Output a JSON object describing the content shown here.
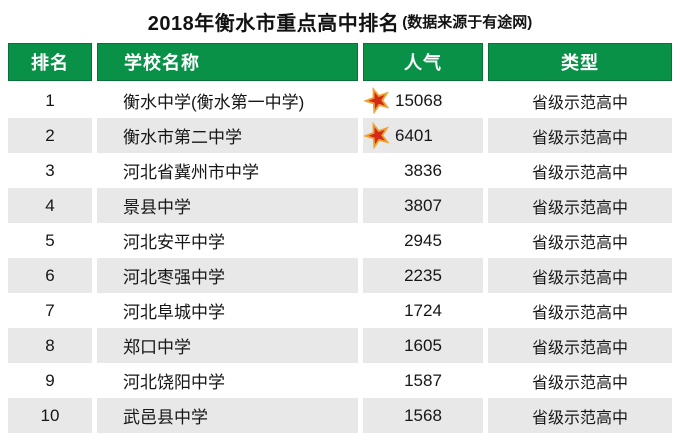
{
  "title": {
    "main": "2018年衡水市重点高中排名",
    "source_note": "(数据来源于有途网)"
  },
  "table": {
    "columns": [
      {
        "label": "排名"
      },
      {
        "label": "学校名称"
      },
      {
        "label": "人气"
      },
      {
        "label": "类型"
      }
    ],
    "rows": [
      {
        "rank": "1",
        "school": "衡水中学(衡水第一中学)",
        "popularity": "15068",
        "starred": true,
        "type": "省级示范高中"
      },
      {
        "rank": "2",
        "school": "衡水市第二中学",
        "popularity": "6401",
        "starred": true,
        "type": "省级示范高中"
      },
      {
        "rank": "3",
        "school": "河北省冀州市中学",
        "popularity": "3836",
        "starred": false,
        "type": "省级示范高中"
      },
      {
        "rank": "4",
        "school": "景县中学",
        "popularity": "3807",
        "starred": false,
        "type": "省级示范高中"
      },
      {
        "rank": "5",
        "school": "河北安平中学",
        "popularity": "2945",
        "starred": false,
        "type": "省级示范高中"
      },
      {
        "rank": "6",
        "school": "河北枣强中学",
        "popularity": "2235",
        "starred": false,
        "type": "省级示范高中"
      },
      {
        "rank": "7",
        "school": "河北阜城中学",
        "popularity": "1724",
        "starred": false,
        "type": "省级示范高中"
      },
      {
        "rank": "8",
        "school": "郑口中学",
        "popularity": "1605",
        "starred": false,
        "type": "省级示范高中"
      },
      {
        "rank": "9",
        "school": "河北饶阳中学",
        "popularity": "1587",
        "starred": false,
        "type": "省级示范高中"
      },
      {
        "rank": "10",
        "school": "武邑县中学",
        "popularity": "1568",
        "starred": false,
        "type": "省级示范高中"
      }
    ]
  },
  "icons": {
    "star": "red five-pointed star with gold outline, marks top-popularity schools"
  },
  "colors": {
    "header_green": "#0a9148",
    "stripe_gray": "#e8e8e8",
    "star_red": "#d42a1a",
    "star_gold": "#eda12f",
    "header_text": "#ffffff",
    "body_text": "#141414"
  },
  "chart_data": {
    "type": "table",
    "title": "2018年衡水市重点高中排名",
    "subtitle": "(数据来源于有途网)",
    "columns": [
      "排名",
      "学校名称",
      "人气",
      "类型"
    ],
    "rows": [
      [
        1,
        "衡水中学(衡水第一中学)",
        15068,
        "省级示范高中"
      ],
      [
        2,
        "衡水市第二中学",
        6401,
        "省级示范高中"
      ],
      [
        3,
        "河北省冀州市中学",
        3836,
        "省级示范高中"
      ],
      [
        4,
        "景县中学",
        3807,
        "省级示范高中"
      ],
      [
        5,
        "河北安平中学",
        2945,
        "省级示范高中"
      ],
      [
        6,
        "河北枣强中学",
        2235,
        "省级示范高中"
      ],
      [
        7,
        "河北阜城中学",
        1724,
        "省级示范高中"
      ],
      [
        8,
        "郑口中学",
        1605,
        "省级示范高中"
      ],
      [
        9,
        "河北饶阳中学",
        1587,
        "省级示范高中"
      ],
      [
        10,
        "武邑县中学",
        1568,
        "省级示范高中"
      ]
    ]
  }
}
